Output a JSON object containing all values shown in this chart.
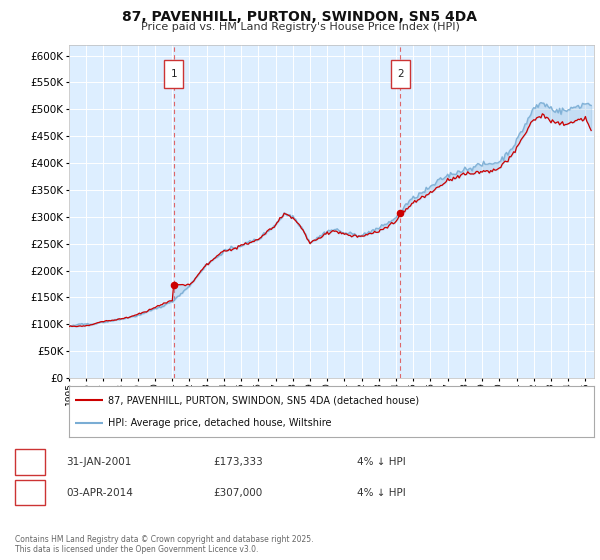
{
  "title": "87, PAVENHILL, PURTON, SWINDON, SN5 4DA",
  "subtitle": "Price paid vs. HM Land Registry's House Price Index (HPI)",
  "background_color": "#ffffff",
  "plot_bg_color": "#ddeeff",
  "grid_color": "#ffffff",
  "ylim": [
    0,
    620000
  ],
  "yticks": [
    0,
    50000,
    100000,
    150000,
    200000,
    250000,
    300000,
    350000,
    400000,
    450000,
    500000,
    550000,
    600000
  ],
  "marker1": {
    "label": "1",
    "date": "31-JAN-2001",
    "price": 173333,
    "x_year": 2001.08,
    "note": "4% ↓ HPI"
  },
  "marker2": {
    "label": "2",
    "date": "03-APR-2014",
    "price": 307000,
    "x_year": 2014.25,
    "note": "4% ↓ HPI"
  },
  "legend_line1": "87, PAVENHILL, PURTON, SWINDON, SN5 4DA (detached house)",
  "legend_line2": "HPI: Average price, detached house, Wiltshire",
  "footer": "Contains HM Land Registry data © Crown copyright and database right 2025.\nThis data is licensed under the Open Government Licence v3.0.",
  "line_color_red": "#cc0000",
  "line_color_blue": "#7aadd4",
  "marker_box_color": "#cc3333",
  "vline_color": "#dd4444",
  "x_start": 1995.0,
  "x_end": 2025.5,
  "xtick_years": [
    1995,
    1996,
    1997,
    1998,
    1999,
    2000,
    2001,
    2002,
    2003,
    2004,
    2005,
    2006,
    2007,
    2008,
    2009,
    2010,
    2011,
    2012,
    2013,
    2014,
    2015,
    2016,
    2017,
    2018,
    2019,
    2020,
    2021,
    2022,
    2023,
    2024,
    2025
  ],
  "purchase1_x": 2001.08,
  "purchase1_y": 173333,
  "purchase2_x": 2014.25,
  "purchase2_y": 307000
}
